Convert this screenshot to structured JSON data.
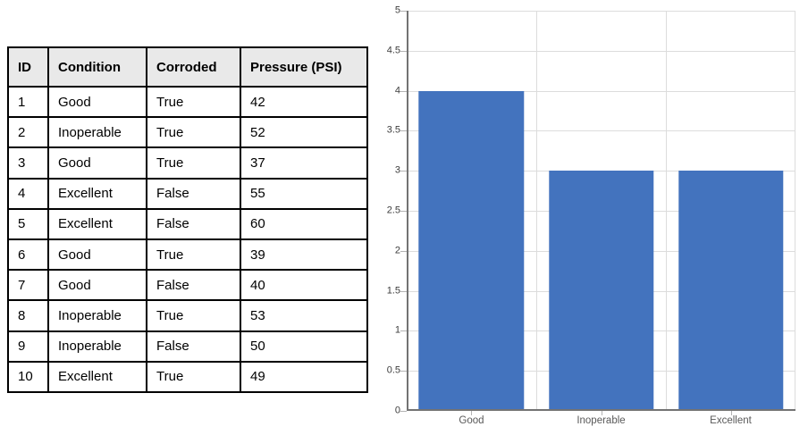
{
  "table": {
    "columns": [
      "ID",
      "Condition",
      "Corroded",
      "Pressure (PSI)"
    ],
    "rows": [
      [
        "1",
        "Good",
        "True",
        "42"
      ],
      [
        "2",
        "Inoperable",
        "True",
        "52"
      ],
      [
        "3",
        "Good",
        "True",
        "37"
      ],
      [
        "4",
        "Excellent",
        "False",
        "55"
      ],
      [
        "5",
        "Excellent",
        "False",
        "60"
      ],
      [
        "6",
        "Good",
        "True",
        "39"
      ],
      [
        "7",
        "Good",
        "False",
        "40"
      ],
      [
        "8",
        "Inoperable",
        "True",
        "53"
      ],
      [
        "9",
        "Inoperable",
        "False",
        "50"
      ],
      [
        "10",
        "Excellent",
        "True",
        "49"
      ]
    ],
    "header_bg": "#E9E9E9",
    "border_color": "#000000"
  },
  "chart_data": {
    "type": "bar",
    "categories": [
      "Good",
      "Inoperable",
      "Excellent"
    ],
    "values": [
      4,
      3,
      3
    ],
    "title": "",
    "xlabel": "",
    "ylabel": "",
    "ylim": [
      0,
      5
    ],
    "ytick_step": 0.5,
    "ytick_labels": [
      "0",
      "0.5",
      "1",
      "1.5",
      "2",
      "2.5",
      "3",
      "3.5",
      "4",
      "4.5",
      "5"
    ],
    "grid": true,
    "legend": "none",
    "bar_color": "#4373BE",
    "gridline_color": "#DCDCDC",
    "axis_color": "#737373",
    "tick_color": "#B3B3B3",
    "ytick_label_color": "#3D3D3D",
    "xtick_label_color": "#595959",
    "bar_width_fraction": 0.81
  }
}
